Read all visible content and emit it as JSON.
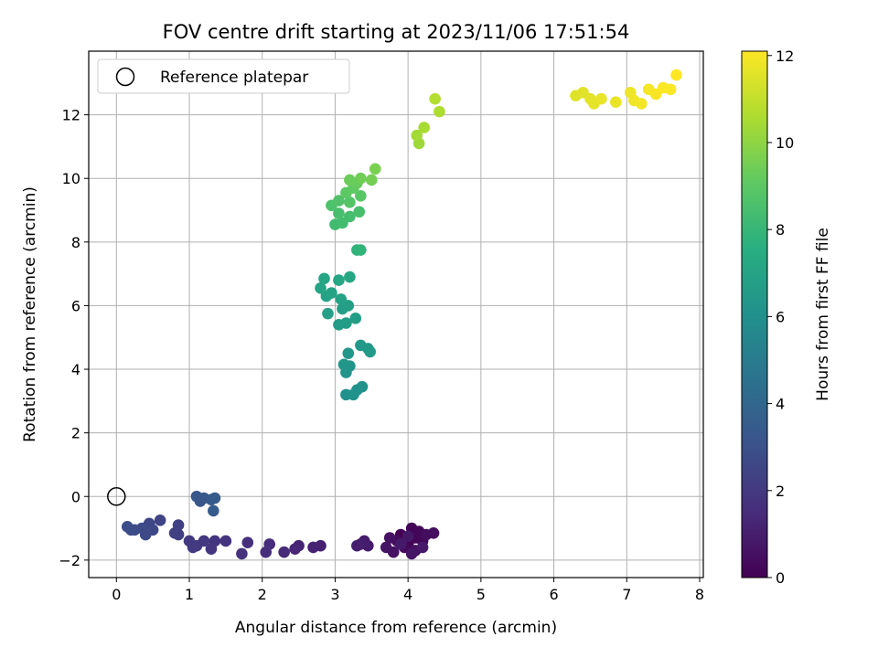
{
  "chart_data": {
    "type": "scatter",
    "title": "FOV centre drift starting at 2023/11/06 17:51:54",
    "xlabel": "Angular distance from reference (arcmin)",
    "ylabel": "Rotation from reference (arcmin)",
    "xlim": [
      -0.38,
      8.05
    ],
    "ylim": [
      -2.55,
      14.0
    ],
    "xticks": [
      0,
      1,
      2,
      3,
      4,
      5,
      6,
      7,
      8
    ],
    "yticks": [
      -2,
      0,
      2,
      4,
      6,
      8,
      10,
      12
    ],
    "grid": true,
    "legend": {
      "position": "top-left",
      "entries": [
        "Reference platepar"
      ]
    },
    "reference_point": {
      "x": 0,
      "y": 0
    },
    "colorbar": {
      "label": "Hours from first FF file",
      "colormap": "viridis",
      "range": [
        0,
        12.1
      ],
      "ticks": [
        0,
        2,
        4,
        6,
        8,
        10,
        12
      ]
    },
    "points": [
      {
        "x": 3.9,
        "y": -1.2,
        "c": 0.0
      },
      {
        "x": 4.0,
        "y": -1.5,
        "c": 0.05
      },
      {
        "x": 4.05,
        "y": -1.0,
        "c": 0.1
      },
      {
        "x": 4.1,
        "y": -1.3,
        "c": 0.15
      },
      {
        "x": 4.15,
        "y": -1.1,
        "c": 0.2
      },
      {
        "x": 4.2,
        "y": -1.4,
        "c": 0.25
      },
      {
        "x": 3.95,
        "y": -1.6,
        "c": 0.3
      },
      {
        "x": 3.85,
        "y": -1.4,
        "c": 0.35
      },
      {
        "x": 4.25,
        "y": -1.2,
        "c": 0.4
      },
      {
        "x": 4.35,
        "y": -1.15,
        "c": 0.45
      },
      {
        "x": 4.1,
        "y": -1.7,
        "c": 0.5
      },
      {
        "x": 3.75,
        "y": -1.3,
        "c": 0.55
      },
      {
        "x": 3.8,
        "y": -1.75,
        "c": 0.6
      },
      {
        "x": 3.7,
        "y": -1.6,
        "c": 0.65
      },
      {
        "x": 4.05,
        "y": -1.8,
        "c": 0.7
      },
      {
        "x": 4.0,
        "y": -1.25,
        "c": 0.75
      },
      {
        "x": 4.2,
        "y": -1.6,
        "c": 0.8
      },
      {
        "x": 3.9,
        "y": -1.5,
        "c": 0.85
      },
      {
        "x": 3.45,
        "y": -1.55,
        "c": 0.9
      },
      {
        "x": 3.4,
        "y": -1.4,
        "c": 0.95
      },
      {
        "x": 3.35,
        "y": -1.5,
        "c": 1.0
      },
      {
        "x": 3.3,
        "y": -1.55,
        "c": 1.05
      },
      {
        "x": 2.8,
        "y": -1.55,
        "c": 1.1
      },
      {
        "x": 2.7,
        "y": -1.6,
        "c": 1.15
      },
      {
        "x": 2.5,
        "y": -1.55,
        "c": 1.2
      },
      {
        "x": 2.45,
        "y": -1.65,
        "c": 1.3
      },
      {
        "x": 2.3,
        "y": -1.75,
        "c": 1.4
      },
      {
        "x": 2.1,
        "y": -1.5,
        "c": 1.5
      },
      {
        "x": 2.05,
        "y": -1.75,
        "c": 1.55
      },
      {
        "x": 1.8,
        "y": -1.45,
        "c": 1.65
      },
      {
        "x": 1.72,
        "y": -1.8,
        "c": 1.7
      },
      {
        "x": 1.5,
        "y": -1.4,
        "c": 1.8
      },
      {
        "x": 1.35,
        "y": -1.4,
        "c": 1.85
      },
      {
        "x": 1.3,
        "y": -1.65,
        "c": 1.9
      },
      {
        "x": 1.2,
        "y": -1.4,
        "c": 1.95
      },
      {
        "x": 1.1,
        "y": -1.55,
        "c": 2.0
      },
      {
        "x": 1.05,
        "y": -1.6,
        "c": 2.05
      },
      {
        "x": 1.0,
        "y": -1.4,
        "c": 2.1
      },
      {
        "x": 0.85,
        "y": -1.2,
        "c": 2.25
      },
      {
        "x": 0.8,
        "y": -1.15,
        "c": 2.3
      },
      {
        "x": 0.85,
        "y": -0.9,
        "c": 2.35
      },
      {
        "x": 0.6,
        "y": -0.75,
        "c": 2.45
      },
      {
        "x": 0.45,
        "y": -0.85,
        "c": 2.55
      },
      {
        "x": 0.5,
        "y": -1.05,
        "c": 2.6
      },
      {
        "x": 0.4,
        "y": -1.2,
        "c": 2.65
      },
      {
        "x": 0.35,
        "y": -1.0,
        "c": 2.7
      },
      {
        "x": 0.25,
        "y": -1.05,
        "c": 2.75
      },
      {
        "x": 0.2,
        "y": -1.05,
        "c": 2.8
      },
      {
        "x": 0.15,
        "y": -0.95,
        "c": 2.85
      },
      {
        "x": 1.15,
        "y": -0.15,
        "c": 3.2
      },
      {
        "x": 1.1,
        "y": 0.0,
        "c": 3.25
      },
      {
        "x": 1.2,
        "y": -0.05,
        "c": 3.3
      },
      {
        "x": 1.3,
        "y": -0.1,
        "c": 3.35
      },
      {
        "x": 1.35,
        "y": -0.05,
        "c": 3.4
      },
      {
        "x": 1.33,
        "y": -0.45,
        "c": 3.45
      },
      {
        "x": 3.15,
        "y": 3.2,
        "c": 6.0
      },
      {
        "x": 3.25,
        "y": 3.2,
        "c": 6.05
      },
      {
        "x": 3.3,
        "y": 3.35,
        "c": 6.1
      },
      {
        "x": 3.37,
        "y": 3.45,
        "c": 6.15
      },
      {
        "x": 3.15,
        "y": 3.9,
        "c": 6.2
      },
      {
        "x": 3.2,
        "y": 4.1,
        "c": 6.25
      },
      {
        "x": 3.12,
        "y": 4.15,
        "c": 6.3
      },
      {
        "x": 3.18,
        "y": 4.5,
        "c": 6.35
      },
      {
        "x": 3.35,
        "y": 4.75,
        "c": 6.4
      },
      {
        "x": 3.45,
        "y": 4.65,
        "c": 6.45
      },
      {
        "x": 3.48,
        "y": 4.55,
        "c": 6.5
      },
      {
        "x": 3.05,
        "y": 5.4,
        "c": 6.6
      },
      {
        "x": 3.15,
        "y": 5.45,
        "c": 6.65
      },
      {
        "x": 3.28,
        "y": 5.6,
        "c": 6.7
      },
      {
        "x": 3.1,
        "y": 5.9,
        "c": 6.75
      },
      {
        "x": 3.18,
        "y": 6.0,
        "c": 6.8
      },
      {
        "x": 2.9,
        "y": 5.75,
        "c": 6.85
      },
      {
        "x": 3.08,
        "y": 6.2,
        "c": 6.9
      },
      {
        "x": 2.88,
        "y": 6.3,
        "c": 6.95
      },
      {
        "x": 2.95,
        "y": 6.4,
        "c": 7.0
      },
      {
        "x": 2.8,
        "y": 6.55,
        "c": 7.05
      },
      {
        "x": 2.85,
        "y": 6.85,
        "c": 7.1
      },
      {
        "x": 3.05,
        "y": 6.8,
        "c": 7.15
      },
      {
        "x": 3.2,
        "y": 6.9,
        "c": 7.2
      },
      {
        "x": 3.3,
        "y": 7.75,
        "c": 7.8
      },
      {
        "x": 3.35,
        "y": 7.75,
        "c": 7.85
      },
      {
        "x": 3.0,
        "y": 8.55,
        "c": 8.3
      },
      {
        "x": 3.1,
        "y": 8.6,
        "c": 8.35
      },
      {
        "x": 3.2,
        "y": 8.8,
        "c": 8.4
      },
      {
        "x": 3.05,
        "y": 8.9,
        "c": 8.45
      },
      {
        "x": 3.33,
        "y": 8.95,
        "c": 8.5
      },
      {
        "x": 2.95,
        "y": 9.15,
        "c": 8.6
      },
      {
        "x": 3.05,
        "y": 9.3,
        "c": 8.7
      },
      {
        "x": 3.2,
        "y": 9.25,
        "c": 8.8
      },
      {
        "x": 3.35,
        "y": 9.45,
        "c": 8.9
      },
      {
        "x": 3.15,
        "y": 9.55,
        "c": 9.0
      },
      {
        "x": 3.25,
        "y": 9.7,
        "c": 9.1
      },
      {
        "x": 3.3,
        "y": 9.85,
        "c": 9.2
      },
      {
        "x": 3.2,
        "y": 9.95,
        "c": 9.3
      },
      {
        "x": 3.35,
        "y": 10.0,
        "c": 9.4
      },
      {
        "x": 3.5,
        "y": 9.95,
        "c": 9.5
      },
      {
        "x": 3.55,
        "y": 10.3,
        "c": 9.6
      },
      {
        "x": 4.15,
        "y": 11.1,
        "c": 10.3
      },
      {
        "x": 4.12,
        "y": 11.35,
        "c": 10.4
      },
      {
        "x": 4.22,
        "y": 11.6,
        "c": 10.5
      },
      {
        "x": 4.43,
        "y": 12.1,
        "c": 10.6
      },
      {
        "x": 4.37,
        "y": 12.5,
        "c": 10.7
      },
      {
        "x": 6.3,
        "y": 12.6,
        "c": 11.5
      },
      {
        "x": 6.4,
        "y": 12.7,
        "c": 11.55
      },
      {
        "x": 6.5,
        "y": 12.5,
        "c": 11.6
      },
      {
        "x": 6.55,
        "y": 12.35,
        "c": 11.65
      },
      {
        "x": 6.65,
        "y": 12.5,
        "c": 11.7
      },
      {
        "x": 6.85,
        "y": 12.4,
        "c": 11.75
      },
      {
        "x": 7.05,
        "y": 12.7,
        "c": 11.8
      },
      {
        "x": 7.1,
        "y": 12.45,
        "c": 11.85
      },
      {
        "x": 7.2,
        "y": 12.35,
        "c": 11.9
      },
      {
        "x": 7.3,
        "y": 12.8,
        "c": 11.95
      },
      {
        "x": 7.4,
        "y": 12.65,
        "c": 12.0
      },
      {
        "x": 7.5,
        "y": 12.85,
        "c": 12.05
      },
      {
        "x": 7.6,
        "y": 12.8,
        "c": 12.08
      },
      {
        "x": 7.68,
        "y": 13.25,
        "c": 12.1
      }
    ]
  }
}
